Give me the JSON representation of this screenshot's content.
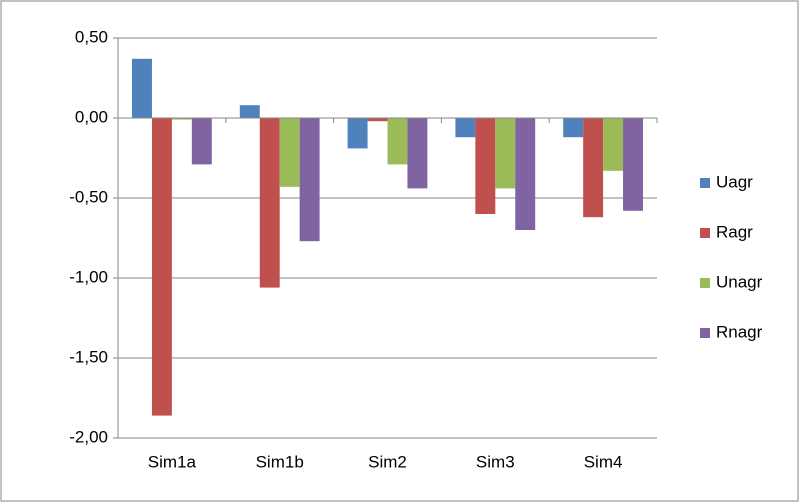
{
  "chart_data": {
    "type": "bar",
    "categories": [
      "Sim1a",
      "Sim1b",
      "Sim2",
      "Sim3",
      "Sim4"
    ],
    "series": [
      {
        "name": "Uagr",
        "color": "#4f81bd",
        "values": [
          0.37,
          0.08,
          -0.19,
          -0.12,
          -0.12
        ]
      },
      {
        "name": "Ragr",
        "color": "#c0504d",
        "values": [
          -1.86,
          -1.06,
          -0.02,
          -0.6,
          -0.62
        ]
      },
      {
        "name": "Unagr",
        "color": "#9bbb59",
        "values": [
          -0.01,
          -0.43,
          -0.29,
          -0.44,
          -0.33
        ]
      },
      {
        "name": "Rnagr",
        "color": "#8064a2",
        "values": [
          -0.29,
          -0.77,
          -0.44,
          -0.7,
          -0.58
        ]
      }
    ],
    "ylim": [
      -2,
      0.5
    ],
    "yticks": [
      {
        "value": 0.5,
        "label": "0,50"
      },
      {
        "value": 0,
        "label": "0,00"
      },
      {
        "value": -0.5,
        "label": "-0,50"
      },
      {
        "value": -1,
        "label": "-1,00"
      },
      {
        "value": -1.5,
        "label": "-1,50"
      },
      {
        "value": -2,
        "label": "-2,00"
      }
    ],
    "grid": true,
    "legend": "right"
  }
}
